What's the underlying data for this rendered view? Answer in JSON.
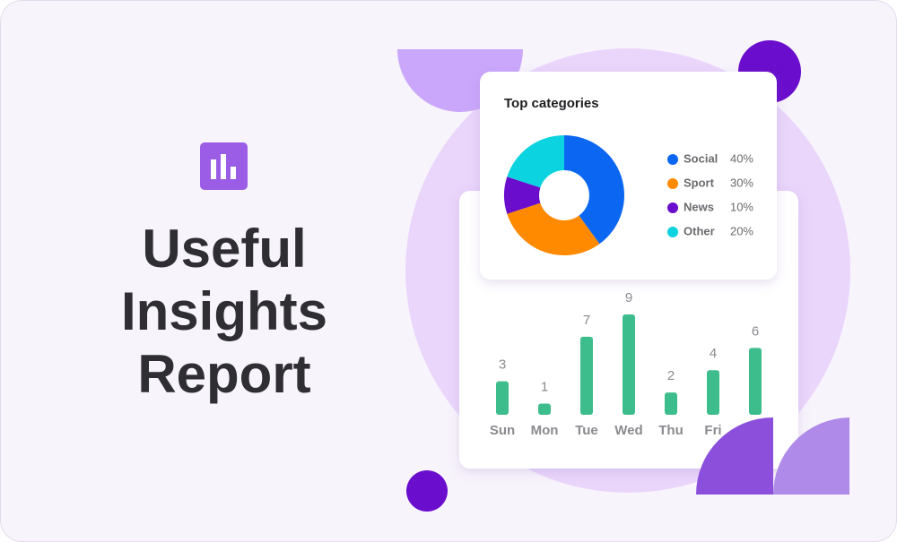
{
  "header": {
    "title_lines": [
      "Useful",
      "Insights",
      "Report"
    ]
  },
  "chart_data": [
    {
      "type": "pie",
      "title": "Top categories",
      "categories": [
        "Social",
        "Sport",
        "News",
        "Other"
      ],
      "values": [
        40,
        30,
        10,
        20
      ],
      "value_labels": [
        "40%",
        "30%",
        "10%",
        "20%"
      ],
      "colors": [
        "#0b66f2",
        "#ff8a00",
        "#6a0dcc",
        "#0bd3e0"
      ]
    },
    {
      "type": "bar",
      "categories": [
        "Sun",
        "Mon",
        "Tue",
        "Wed",
        "Thu",
        "Fri",
        null
      ],
      "values": [
        3,
        1,
        7,
        9,
        2,
        4,
        6
      ],
      "color": "#3dbd8c"
    }
  ]
}
